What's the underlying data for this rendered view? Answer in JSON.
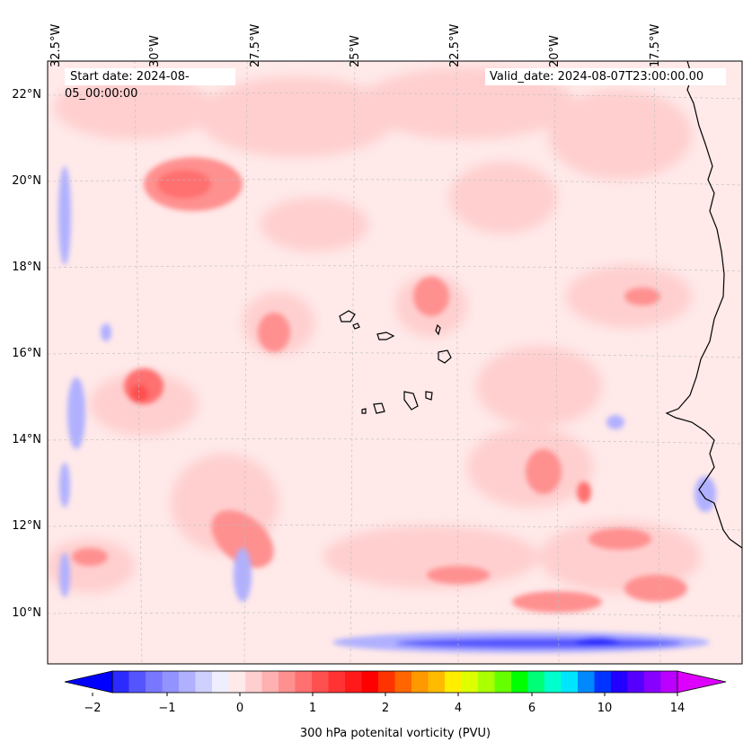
{
  "header": {
    "start_date": "Start date: 2024-08-05_00:00:00",
    "valid_date": "Valid_date: 2024-08-07T23:00:00.00"
  },
  "longitude_labels": [
    "32.5°W",
    "30°W",
    "27.5°W",
    "25°W",
    "22.5°W",
    "20°W",
    "17.5°W"
  ],
  "latitude_labels": [
    "22°N",
    "20°N",
    "18°N",
    "16°N",
    "14°N",
    "12°N",
    "10°N"
  ],
  "colorbar": {
    "label": "300 hPa potenital vorticity (PVU)",
    "tick_labels": [
      "−2",
      "−1",
      "0",
      "1",
      "2",
      "4",
      "6",
      "10",
      "14"
    ],
    "colors": [
      "#0000ff",
      "#2b2bff",
      "#5555ff",
      "#7777ff",
      "#9393ff",
      "#b0b0ff",
      "#d0d0ff",
      "#eeeeff",
      "#ffe9e9",
      "#ffcfcf",
      "#ffb0b0",
      "#ff9090",
      "#ff7070",
      "#ff5050",
      "#ff3333",
      "#ff1a1a",
      "#ff0000",
      "#ff3300",
      "#ff6600",
      "#ff9900",
      "#ffbb00",
      "#ffee00",
      "#ddff00",
      "#aaff00",
      "#66ff00",
      "#00ff00",
      "#00ff77",
      "#00ffcc",
      "#00e5ff",
      "#0088ff",
      "#0033ff",
      "#2200ff",
      "#5500ff",
      "#8800ff",
      "#bb00ff",
      "#dd00ff"
    ],
    "extend": "both"
  },
  "map": {
    "variable": "300 hPa potential vorticity",
    "background_color": "#ffe9e9",
    "coastline_color": "#000000"
  }
}
